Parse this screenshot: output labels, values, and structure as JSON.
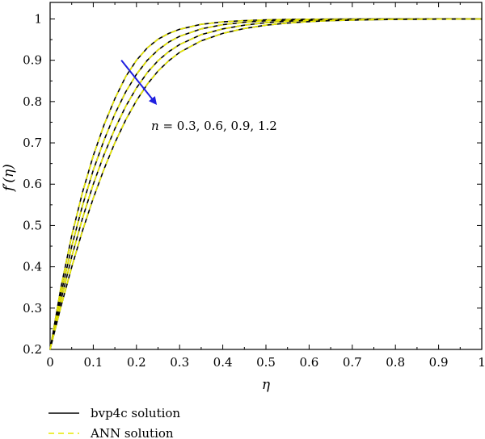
{
  "chart_data": {
    "type": "line",
    "xlabel": "η",
    "ylabel": "f′(η)",
    "xlim": [
      0,
      1
    ],
    "ylim": [
      0.2,
      1.04
    ],
    "xticks": [
      "0",
      "0.1",
      "0.2",
      "0.3",
      "0.4",
      "0.5",
      "0.6",
      "0.7",
      "0.8",
      "0.9",
      "1"
    ],
    "yticks": [
      "0.2",
      "0.3",
      "0.4",
      "0.5",
      "0.6",
      "0.7",
      "0.8",
      "0.9",
      "1"
    ],
    "grid": false,
    "legend_position": "bottom-left",
    "annotation": {
      "n_symbol": "n",
      "text": " = 0.3, 0.6, 0.9, 1.2",
      "arrow_color": "#1f1fe0",
      "arrow_from": [
        0.165,
        0.9
      ],
      "arrow_to": [
        0.245,
        0.795
      ]
    },
    "legend": [
      {
        "label": "bvp4c solution",
        "color": "#000000",
        "style": "solid"
      },
      {
        "label": "ANN solution",
        "color": "#e8e800",
        "style": "dashed"
      }
    ],
    "x": [
      0,
      0.025,
      0.05,
      0.075,
      0.1,
      0.125,
      0.15,
      0.175,
      0.2,
      0.225,
      0.25,
      0.275,
      0.3,
      0.35,
      0.4,
      0.45,
      0.5,
      0.55,
      0.6,
      0.65,
      0.7,
      0.75,
      0.8,
      0.85,
      0.9,
      0.95,
      1.0
    ],
    "series": [
      {
        "param": 0.3,
        "values": [
          0.2,
          0.349,
          0.475,
          0.58,
          0.669,
          0.744,
          0.807,
          0.86,
          0.9,
          0.93,
          0.951,
          0.965,
          0.975,
          0.987,
          0.993,
          0.996,
          0.998,
          0.9988,
          0.9993,
          0.9996,
          0.9998,
          0.9999,
          0.9999,
          1.0,
          1.0,
          1.0,
          1.0
        ]
      },
      {
        "param": 0.6,
        "values": [
          0.2,
          0.333,
          0.449,
          0.548,
          0.634,
          0.707,
          0.77,
          0.823,
          0.866,
          0.9,
          0.925,
          0.944,
          0.958,
          0.976,
          0.986,
          0.992,
          0.9955,
          0.9973,
          0.9984,
          0.999,
          0.9994,
          0.9996,
          0.9998,
          0.9999,
          0.9999,
          1.0,
          1.0
        ]
      },
      {
        "param": 0.9,
        "values": [
          0.2,
          0.318,
          0.424,
          0.517,
          0.6,
          0.672,
          0.734,
          0.788,
          0.833,
          0.87,
          0.899,
          0.921,
          0.938,
          0.962,
          0.976,
          0.985,
          0.991,
          0.9945,
          0.9967,
          0.998,
          0.9988,
          0.9993,
          0.9996,
          0.9997,
          0.9998,
          0.9999,
          1.0
        ]
      },
      {
        "param": 1.2,
        "values": [
          0.2,
          0.303,
          0.399,
          0.487,
          0.566,
          0.637,
          0.7,
          0.755,
          0.802,
          0.842,
          0.874,
          0.899,
          0.919,
          0.947,
          0.965,
          0.977,
          0.985,
          0.99,
          0.9935,
          0.9958,
          0.9972,
          0.9982,
          0.9988,
          0.9992,
          0.9995,
          0.9997,
          0.9998
        ]
      }
    ]
  }
}
